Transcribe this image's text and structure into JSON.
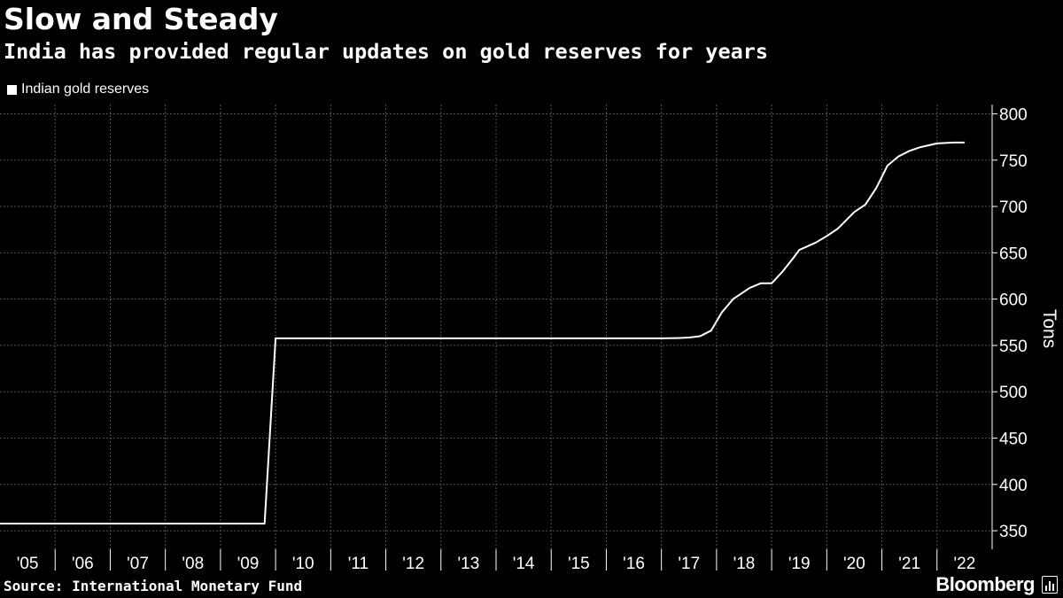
{
  "header": {
    "title": "Slow and Steady",
    "subtitle": "India has provided regular updates on gold reserves for years"
  },
  "footer": {
    "source": "Source: International Monetary Fund",
    "brand": "Bloomberg"
  },
  "colors": {
    "background": "#000000",
    "line": "#ffffff",
    "grid": "#555555",
    "text": "#ffffff"
  },
  "chart_data": {
    "type": "line",
    "title": "Slow and Steady",
    "subtitle": "India has provided regular updates on gold reserves for years",
    "xlabel": "",
    "ylabel": "Tons",
    "xlim": [
      2005.0,
      2023.0
    ],
    "ylim": [
      330,
      810
    ],
    "yticks": [
      350,
      400,
      450,
      500,
      550,
      600,
      650,
      700,
      750,
      800
    ],
    "xtick_labels": [
      "'05",
      "'06",
      "'07",
      "'08",
      "'09",
      "'10",
      "'11",
      "'12",
      "'13",
      "'14",
      "'15",
      "'16",
      "'17",
      "'18",
      "'19",
      "'20",
      "'21",
      "'22"
    ],
    "grid": true,
    "legend_position": "top-left",
    "series": [
      {
        "name": "Indian gold reserves",
        "x": [
          2005.0,
          2009.8,
          2010.0,
          2017.0,
          2017.3,
          2017.5,
          2017.7,
          2017.9,
          2018.1,
          2018.3,
          2018.6,
          2018.8,
          2019.0,
          2019.2,
          2019.4,
          2019.5,
          2019.8,
          2020.0,
          2020.2,
          2020.5,
          2020.7,
          2020.9,
          2021.1,
          2021.3,
          2021.5,
          2021.7,
          2022.0,
          2022.3,
          2022.5
        ],
        "values": [
          357.7,
          357.7,
          557.7,
          557.7,
          558.0,
          558.5,
          560.0,
          566.0,
          586.0,
          600.0,
          612.0,
          617.0,
          617.0,
          630.0,
          645.0,
          653.0,
          661.0,
          668.0,
          676.0,
          694.0,
          702.0,
          720.0,
          744.0,
          754.0,
          760.0,
          764.0,
          768.0,
          769.0,
          769.0
        ]
      }
    ]
  }
}
